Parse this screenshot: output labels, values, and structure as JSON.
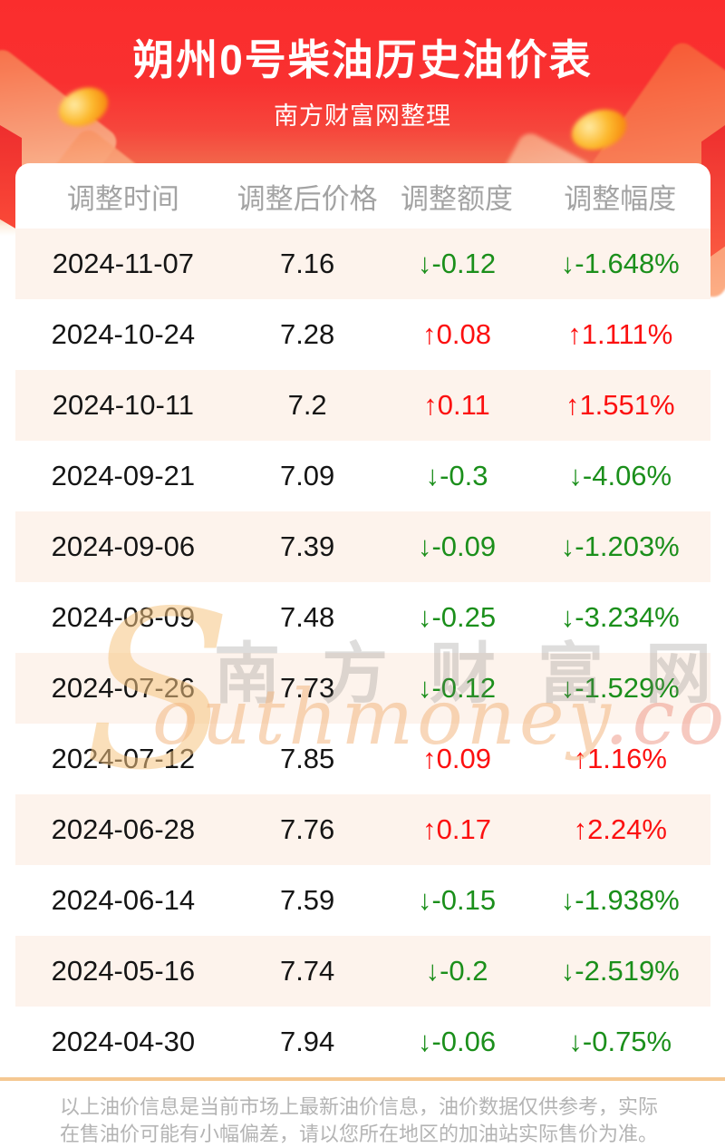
{
  "page": {
    "title": "朔州0号柴油历史油价表",
    "subtitle": "南方财富网整理"
  },
  "table": {
    "columns": [
      "调整时间",
      "调整后价格",
      "调整额度",
      "调整幅度"
    ],
    "rows": [
      {
        "date": "2024-11-07",
        "price": "7.16",
        "change": "↓-0.12",
        "percent": "↓-1.648%",
        "direction": "down"
      },
      {
        "date": "2024-10-24",
        "price": "7.28",
        "change": "↑0.08",
        "percent": "↑1.111%",
        "direction": "up"
      },
      {
        "date": "2024-10-11",
        "price": "7.2",
        "change": "↑0.11",
        "percent": "↑1.551%",
        "direction": "up"
      },
      {
        "date": "2024-09-21",
        "price": "7.09",
        "change": "↓-0.3",
        "percent": "↓-4.06%",
        "direction": "down"
      },
      {
        "date": "2024-09-06",
        "price": "7.39",
        "change": "↓-0.09",
        "percent": "↓-1.203%",
        "direction": "down"
      },
      {
        "date": "2024-08-09",
        "price": "7.48",
        "change": "↓-0.25",
        "percent": "↓-3.234%",
        "direction": "down"
      },
      {
        "date": "2024-07-26",
        "price": "7.73",
        "change": "↓-0.12",
        "percent": "↓-1.529%",
        "direction": "down"
      },
      {
        "date": "2024-07-12",
        "price": "7.85",
        "change": "↑0.09",
        "percent": "↑1.16%",
        "direction": "up"
      },
      {
        "date": "2024-06-28",
        "price": "7.76",
        "change": "↑0.17",
        "percent": "↑2.24%",
        "direction": "up"
      },
      {
        "date": "2024-06-14",
        "price": "7.59",
        "change": "↓-0.15",
        "percent": "↓-1.938%",
        "direction": "down"
      },
      {
        "date": "2024-05-16",
        "price": "7.74",
        "change": "↓-0.2",
        "percent": "↓-2.519%",
        "direction": "down"
      },
      {
        "date": "2024-04-30",
        "price": "7.94",
        "change": "↓-0.06",
        "percent": "↓-0.75%",
        "direction": "down"
      }
    ]
  },
  "watermark": {
    "cn": "南方财富网",
    "latin_initial": "S",
    "latin_script": "outhmoney",
    "latin_tld": ".com"
  },
  "footer": {
    "lines": [
      "以上油价信息是当前市场上最新油价信息，油价数据仅供参考，实际",
      "在售油价可能有小幅偏差，请以您所在地区的加油站实际售价为准。"
    ]
  },
  "colors": {
    "banner_red": "#fa2d2d",
    "up_red": "#fc1010",
    "down_green": "#1b8f1b",
    "row_stripe": "#fdf3ec",
    "divider_tan": "#f5c892",
    "header_gray": "#a3a3a3"
  }
}
